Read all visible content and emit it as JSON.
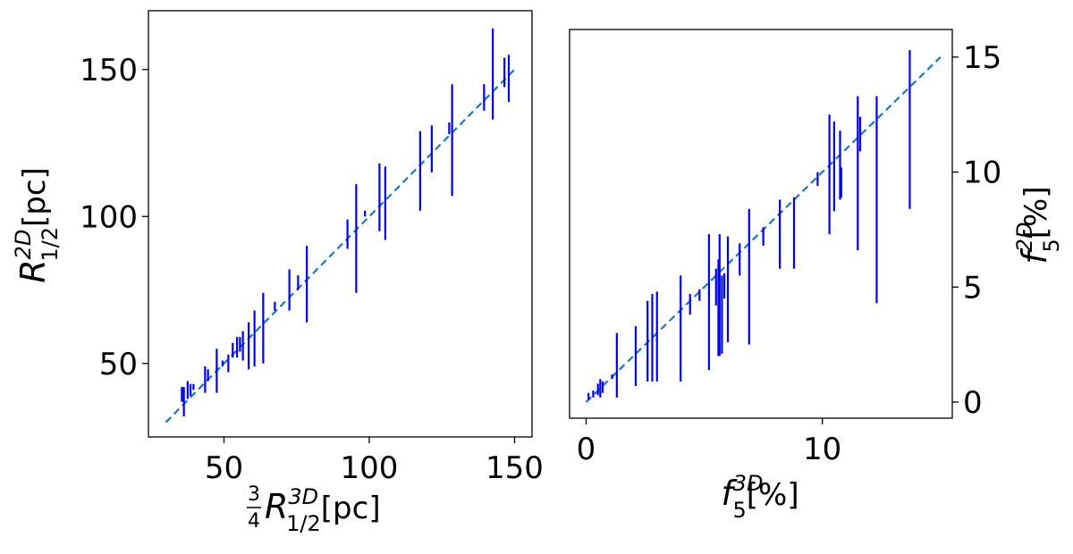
{
  "chart_data": [
    {
      "type": "errorbar",
      "xlim": [
        24,
        156
      ],
      "ylim": [
        25,
        170
      ],
      "xticks": [
        50,
        100,
        150
      ],
      "yticks": [
        50,
        100,
        150
      ],
      "xlabel": {
        "frac_num": "3",
        "frac_den": "4",
        "sym": "R",
        "sup": "3D",
        "sub": "1/2",
        "unit": "[pc]"
      },
      "ylabel": {
        "sym": "R",
        "sup": "2D",
        "sub": "1/2",
        "unit": "[pc]"
      },
      "reference_line": {
        "x": [
          30,
          150
        ],
        "y": [
          30,
          150
        ],
        "style": "dashed"
      },
      "series": [
        {
          "errorbars": [
            {
              "x": 35.5,
              "ylow": 37,
              "yhigh": 42
            },
            {
              "x": 36.2,
              "ylow": 32,
              "yhigh": 42
            },
            {
              "x": 37.5,
              "ylow": 38,
              "yhigh": 44
            },
            {
              "x": 38.5,
              "ylow": 39,
              "yhigh": 43
            },
            {
              "x": 39.5,
              "ylow": 41,
              "yhigh": 43
            },
            {
              "x": 43.5,
              "ylow": 40,
              "yhigh": 49
            },
            {
              "x": 44.5,
              "ylow": 44,
              "yhigh": 48
            },
            {
              "x": 47.5,
              "ylow": 40,
              "yhigh": 55
            },
            {
              "x": 49.5,
              "ylow": 49,
              "yhigh": 51
            },
            {
              "x": 51.5,
              "ylow": 47,
              "yhigh": 53
            },
            {
              "x": 53,
              "ylow": 52,
              "yhigh": 57
            },
            {
              "x": 54.5,
              "ylow": 52,
              "yhigh": 59
            },
            {
              "x": 55.5,
              "ylow": 54,
              "yhigh": 59
            },
            {
              "x": 56.5,
              "ylow": 51,
              "yhigh": 61
            },
            {
              "x": 58.5,
              "ylow": 48,
              "yhigh": 64
            },
            {
              "x": 60.5,
              "ylow": 49,
              "yhigh": 68
            },
            {
              "x": 63.5,
              "ylow": 50,
              "yhigh": 74
            },
            {
              "x": 67.5,
              "ylow": 68,
              "yhigh": 71
            },
            {
              "x": 72.5,
              "ylow": 68,
              "yhigh": 82
            },
            {
              "x": 75.5,
              "ylow": 75,
              "yhigh": 80
            },
            {
              "x": 78.5,
              "ylow": 64,
              "yhigh": 90
            },
            {
              "x": 92.5,
              "ylow": 89,
              "yhigh": 99
            },
            {
              "x": 95.5,
              "ylow": 74,
              "yhigh": 111
            },
            {
              "x": 98.5,
              "ylow": 100,
              "yhigh": 102
            },
            {
              "x": 103.5,
              "ylow": 95,
              "yhigh": 118
            },
            {
              "x": 105.5,
              "ylow": 92,
              "yhigh": 117
            },
            {
              "x": 117.5,
              "ylow": 102,
              "yhigh": 129
            },
            {
              "x": 121.5,
              "ylow": 115,
              "yhigh": 131
            },
            {
              "x": 127.5,
              "ylow": 128,
              "yhigh": 132
            },
            {
              "x": 128.5,
              "ylow": 107,
              "yhigh": 145
            },
            {
              "x": 139.5,
              "ylow": 136,
              "yhigh": 145
            },
            {
              "x": 142.5,
              "ylow": 133,
              "yhigh": 164
            },
            {
              "x": 146.5,
              "ylow": 144,
              "yhigh": 154
            },
            {
              "x": 148,
              "ylow": 139,
              "yhigh": 155
            }
          ]
        }
      ]
    },
    {
      "type": "errorbar",
      "xlim": [
        -0.7,
        15.5
      ],
      "ylim": [
        -0.7,
        16.2
      ],
      "xticks": [
        0,
        10
      ],
      "yticks": [
        0,
        5,
        10,
        15
      ],
      "xlabel": {
        "sym": "f",
        "sup": "3D",
        "sub": "5",
        "unit": "[%]"
      },
      "ylabel": {
        "sym": "f",
        "sup": "2D",
        "sub": "5",
        "unit": "[%]"
      },
      "ylabel_side": "right",
      "reference_line": {
        "x": [
          0,
          15
        ],
        "y": [
          0,
          15
        ],
        "style": "dashed"
      },
      "series": [
        {
          "errorbars": [
            {
              "x": 0.1,
              "ylow": 0.1,
              "yhigh": 0.4
            },
            {
              "x": 0.3,
              "ylow": 0.2,
              "yhigh": 0.5
            },
            {
              "x": 0.5,
              "ylow": 0.3,
              "yhigh": 0.8
            },
            {
              "x": 0.6,
              "ylow": 0.2,
              "yhigh": 1.0
            },
            {
              "x": 0.7,
              "ylow": 0.4,
              "yhigh": 0.9
            },
            {
              "x": 1.1,
              "ylow": 1.0,
              "yhigh": 1.2
            },
            {
              "x": 1.3,
              "ylow": 0.2,
              "yhigh": 3.0
            },
            {
              "x": 2.1,
              "ylow": 0.7,
              "yhigh": 3.3
            },
            {
              "x": 2.6,
              "ylow": 0.9,
              "yhigh": 4.4
            },
            {
              "x": 2.8,
              "ylow": 0.9,
              "yhigh": 4.7
            },
            {
              "x": 3.0,
              "ylow": 0.9,
              "yhigh": 4.8
            },
            {
              "x": 4.0,
              "ylow": 0.9,
              "yhigh": 5.5
            },
            {
              "x": 4.4,
              "ylow": 3.8,
              "yhigh": 4.7
            },
            {
              "x": 4.8,
              "ylow": 4.4,
              "yhigh": 4.9
            },
            {
              "x": 5.2,
              "ylow": 1.4,
              "yhigh": 7.3
            },
            {
              "x": 5.5,
              "ylow": 4.2,
              "yhigh": 5.8
            },
            {
              "x": 5.6,
              "ylow": 2.0,
              "yhigh": 6.2
            },
            {
              "x": 5.65,
              "ylow": 2.0,
              "yhigh": 7.3
            },
            {
              "x": 5.75,
              "ylow": 2.1,
              "yhigh": 5.5
            },
            {
              "x": 5.85,
              "ylow": 4.5,
              "yhigh": 5.6
            },
            {
              "x": 6.0,
              "ylow": 2.6,
              "yhigh": 7.2
            },
            {
              "x": 6.5,
              "ylow": 5.5,
              "yhigh": 6.9
            },
            {
              "x": 6.9,
              "ylow": 2.5,
              "yhigh": 8.4
            },
            {
              "x": 7.5,
              "ylow": 6.8,
              "yhigh": 7.6
            },
            {
              "x": 8.2,
              "ylow": 5.8,
              "yhigh": 8.8
            },
            {
              "x": 8.8,
              "ylow": 5.8,
              "yhigh": 8.9
            },
            {
              "x": 9.8,
              "ylow": 9.4,
              "yhigh": 10.0
            },
            {
              "x": 10.3,
              "ylow": 7.3,
              "yhigh": 12.5
            },
            {
              "x": 10.5,
              "ylow": 8.3,
              "yhigh": 12.2
            },
            {
              "x": 10.75,
              "ylow": 8.8,
              "yhigh": 11.8
            },
            {
              "x": 10.8,
              "ylow": 8.9,
              "yhigh": 10.2
            },
            {
              "x": 11.5,
              "ylow": 6.6,
              "yhigh": 13.3
            },
            {
              "x": 11.6,
              "ylow": 10.9,
              "yhigh": 12.4
            },
            {
              "x": 12.3,
              "ylow": 4.3,
              "yhigh": 13.3
            },
            {
              "x": 13.7,
              "ylow": 8.4,
              "yhigh": 15.3
            }
          ]
        }
      ]
    }
  ],
  "colors": {
    "errorbar": "#0000ee",
    "reference_line": "#1f77b4",
    "axes": "#000000"
  }
}
